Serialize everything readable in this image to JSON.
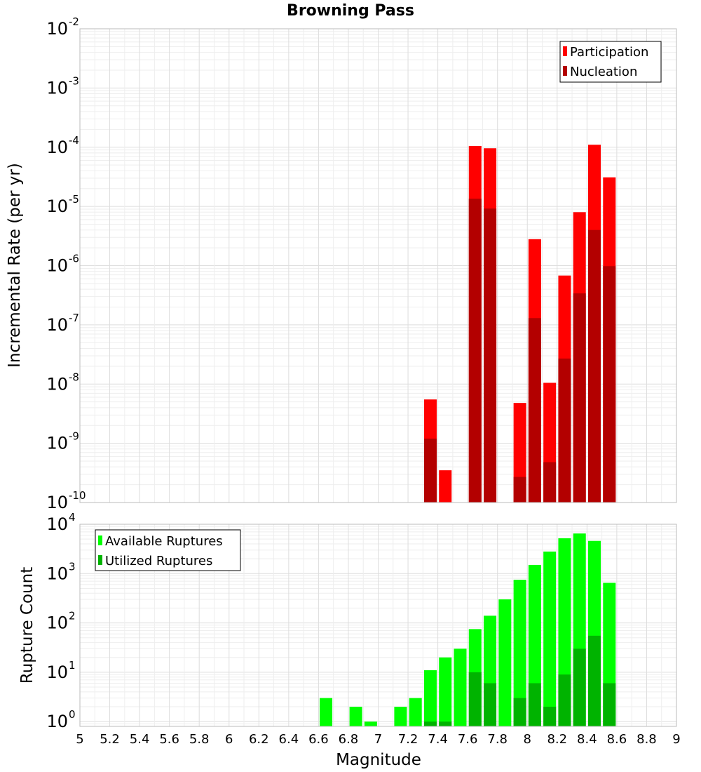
{
  "chart_data": [
    {
      "type": "bar",
      "title": "Browning Pass",
      "xlabel": "",
      "ylabel": "Incremental Rate (per yr)",
      "yscale": "log",
      "ylim": [
        1e-10,
        0.01
      ],
      "xlim": [
        5,
        9
      ],
      "grid": true,
      "legend_position": "top-right",
      "x": [
        7.35,
        7.45,
        7.65,
        7.75,
        7.95,
        8.05,
        8.15,
        8.25,
        8.35,
        8.45,
        8.55
      ],
      "series": [
        {
          "name": "Participation",
          "color": "#ff0000",
          "values": [
            5.5e-09,
            3.5e-10,
            0.000105,
            9.6e-05,
            4.8e-09,
            2.8e-06,
            1.05e-08,
            6.8e-07,
            8e-06,
            0.00011,
            3.1e-05
          ]
        },
        {
          "name": "Nucleation",
          "color": "#b30000",
          "values": [
            1.2e-09,
            0,
            1.35e-05,
            9.2e-06,
            2.7e-10,
            1.3e-07,
            4.8e-10,
            2.7e-08,
            3.4e-07,
            4e-06,
            9.8e-07
          ]
        }
      ],
      "y_ticks": [
        {
          "base": "10",
          "exp": "-10"
        },
        {
          "base": "10",
          "exp": "-9"
        },
        {
          "base": "10",
          "exp": "-8"
        },
        {
          "base": "10",
          "exp": "-7"
        },
        {
          "base": "10",
          "exp": "-6"
        },
        {
          "base": "10",
          "exp": "-5"
        },
        {
          "base": "10",
          "exp": "-4"
        },
        {
          "base": "10",
          "exp": "-3"
        },
        {
          "base": "10",
          "exp": "-2"
        }
      ]
    },
    {
      "type": "bar",
      "title": "",
      "xlabel": "Magnitude",
      "ylabel": "Rupture Count",
      "yscale": "log",
      "ylim": [
        0.8,
        10000
      ],
      "xlim": [
        5,
        9
      ],
      "grid": true,
      "legend_position": "top-left",
      "x": [
        6.65,
        6.85,
        6.95,
        7.15,
        7.25,
        7.35,
        7.45,
        7.55,
        7.65,
        7.75,
        7.85,
        7.95,
        8.05,
        8.15,
        8.25,
        8.35,
        8.45,
        8.55
      ],
      "series": [
        {
          "name": "Available Ruptures",
          "color": "#00ff00",
          "values": [
            3,
            2,
            1,
            2,
            3,
            11,
            20,
            30,
            75,
            140,
            300,
            750,
            1500,
            2800,
            5200,
            6500,
            4600,
            650
          ]
        },
        {
          "name": "Utilized Ruptures",
          "color": "#00b300",
          "values": [
            0,
            0,
            0,
            0,
            0,
            1,
            1,
            0,
            10,
            6,
            0,
            3,
            6,
            2,
            9,
            30,
            55,
            6
          ]
        }
      ],
      "y_ticks": [
        {
          "base": "10",
          "exp": "0"
        },
        {
          "base": "10",
          "exp": "1"
        },
        {
          "base": "10",
          "exp": "2"
        },
        {
          "base": "10",
          "exp": "3"
        },
        {
          "base": "10",
          "exp": "4"
        }
      ],
      "x_ticks": [
        "5",
        "5.2",
        "5.4",
        "5.6",
        "5.8",
        "6",
        "6.2",
        "6.4",
        "6.6",
        "6.8",
        "7",
        "7.2",
        "7.4",
        "7.6",
        "7.8",
        "8",
        "8.2",
        "8.4",
        "8.6",
        "8.8",
        "9"
      ]
    }
  ]
}
